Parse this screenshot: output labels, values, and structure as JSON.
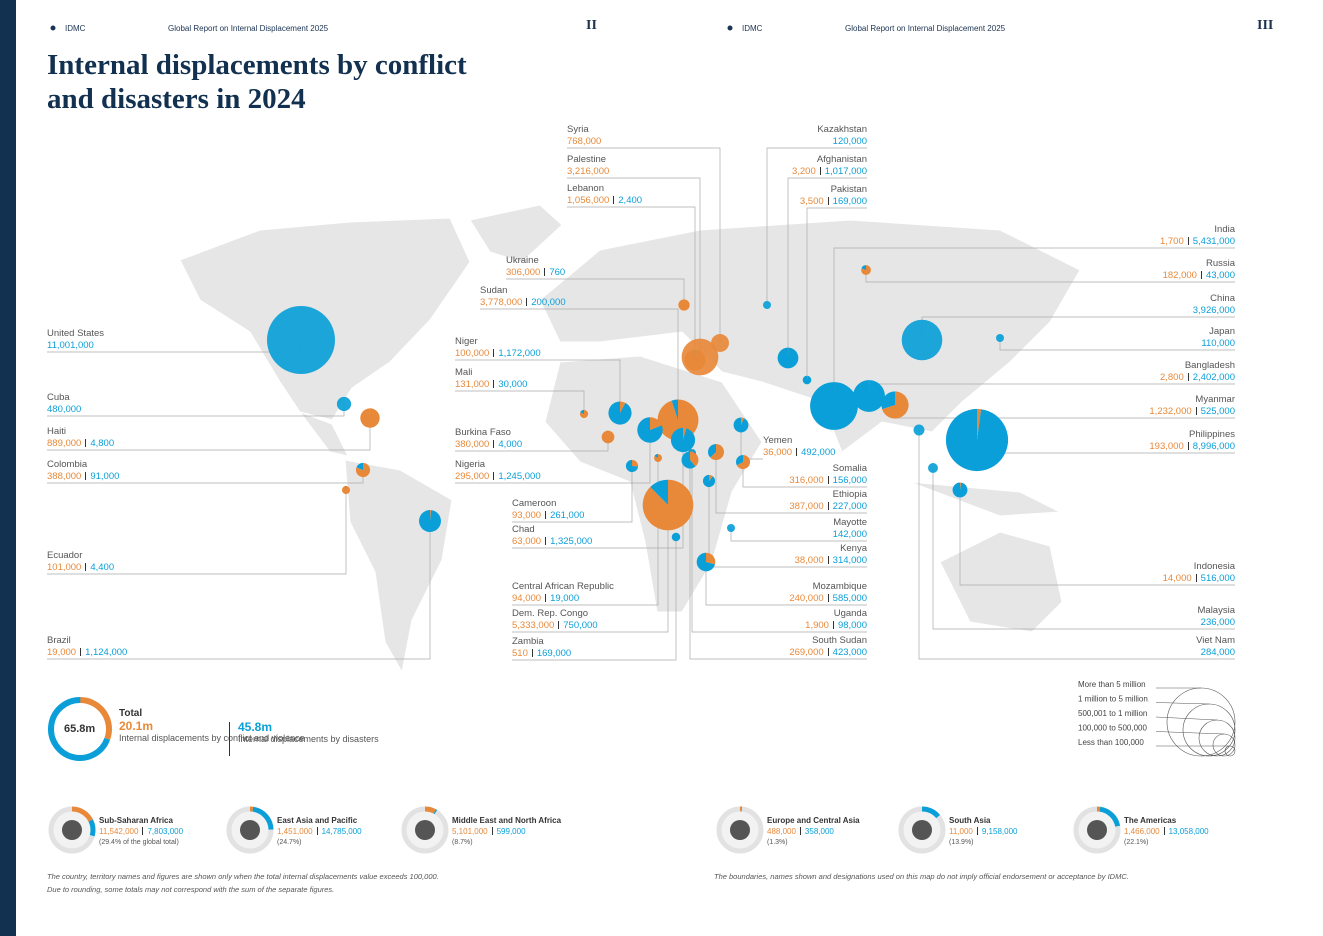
{
  "header": {
    "left": {
      "org": "IDMC",
      "report": "Global Report on Internal Displacement 2025",
      "page": "II"
    },
    "right": {
      "org": "IDMC",
      "report": "Global Report on Internal Displacement 2025",
      "page": "III"
    }
  },
  "title": "Internal displacements by conflict and disasters in 2024",
  "countries": [
    {
      "name": "United States",
      "disasters": {
        "value": 11001000,
        "label": "11,001,000"
      }
    },
    {
      "name": "Cuba",
      "disasters": {
        "value": 480000,
        "label": "480,000"
      }
    },
    {
      "name": "Haiti",
      "conflict": {
        "value": 889000,
        "label": "889,000"
      },
      "disasters": {
        "value": 4800,
        "label": "4,800"
      }
    },
    {
      "name": "Colombia",
      "conflict": {
        "value": 388000,
        "label": "388,000"
      },
      "disasters": {
        "value": 91000,
        "label": "91,000"
      }
    },
    {
      "name": "Ecuador",
      "conflict": {
        "value": 101000,
        "label": "101,000"
      },
      "disasters": {
        "value": 4400,
        "label": "4,400"
      }
    },
    {
      "name": "Brazil",
      "conflict": {
        "value": 19000,
        "label": "19,000"
      },
      "disasters": {
        "value": 1124000,
        "label": "1,124,000"
      }
    },
    {
      "name": "Ukraine",
      "conflict": {
        "value": 306000,
        "label": "306,000"
      },
      "disasters": {
        "value": 760,
        "label": "760"
      }
    },
    {
      "name": "Sudan",
      "conflict": {
        "value": 3778000,
        "label": "3,778,000"
      },
      "disasters": {
        "value": 200000,
        "label": "200,000"
      }
    },
    {
      "name": "Niger",
      "conflict": {
        "value": 100000,
        "label": "100,000"
      },
      "disasters": {
        "value": 1172000,
        "label": "1,172,000"
      }
    },
    {
      "name": "Mali",
      "conflict": {
        "value": 131000,
        "label": "131,000"
      },
      "disasters": {
        "value": 30000,
        "label": "30,000"
      }
    },
    {
      "name": "Burkina Faso",
      "conflict": {
        "value": 380000,
        "label": "380,000"
      },
      "disasters": {
        "value": 4000,
        "label": "4,000"
      }
    },
    {
      "name": "Nigeria",
      "conflict": {
        "value": 295000,
        "label": "295,000"
      },
      "disasters": {
        "value": 1245000,
        "label": "1,245,000"
      }
    },
    {
      "name": "Syria",
      "conflict": {
        "value": 768000,
        "label": "768,000"
      }
    },
    {
      "name": "Palestine",
      "conflict": {
        "value": 3216000,
        "label": "3,216,000"
      }
    },
    {
      "name": "Lebanon",
      "conflict": {
        "value": 1056000,
        "label": "1,056,000"
      },
      "disasters": {
        "value": 2400,
        "label": "2,400"
      }
    },
    {
      "name": "Cameroon",
      "conflict": {
        "value": 93000,
        "label": "93,000"
      },
      "disasters": {
        "value": 261000,
        "label": "261,000"
      }
    },
    {
      "name": "Chad",
      "conflict": {
        "value": 63000,
        "label": "63,000"
      },
      "disasters": {
        "value": 1325000,
        "label": "1,325,000"
      }
    },
    {
      "name": "Central African Republic",
      "conflict": {
        "value": 94000,
        "label": "94,000"
      },
      "disasters": {
        "value": 19000,
        "label": "19,000"
      }
    },
    {
      "name": "Dem. Rep. Congo",
      "conflict": {
        "value": 5333000,
        "label": "5,333,000"
      },
      "disasters": {
        "value": 750000,
        "label": "750,000"
      }
    },
    {
      "name": "Zambia",
      "conflict": {
        "value": 510,
        "label": "510"
      },
      "disasters": {
        "value": 169000,
        "label": "169,000"
      }
    },
    {
      "name": "Kazakhstan",
      "disasters": {
        "value": 120000,
        "label": "120,000"
      }
    },
    {
      "name": "Afghanistan",
      "conflict": {
        "value": 3200,
        "label": "3,200"
      },
      "disasters": {
        "value": 1017000,
        "label": "1,017,000"
      }
    },
    {
      "name": "Pakistan",
      "conflict": {
        "value": 3500,
        "label": "3,500"
      },
      "disasters": {
        "value": 169000,
        "label": "169,000"
      }
    },
    {
      "name": "Yemen",
      "conflict": {
        "value": 36000,
        "label": "36,000"
      },
      "disasters": {
        "value": 492000,
        "label": "492,000"
      }
    },
    {
      "name": "Somalia",
      "conflict": {
        "value": 316000,
        "label": "316,000"
      },
      "disasters": {
        "value": 156000,
        "label": "156,000"
      }
    },
    {
      "name": "Ethiopia",
      "conflict": {
        "value": 387000,
        "label": "387,000"
      },
      "disasters": {
        "value": 227000,
        "label": "227,000"
      }
    },
    {
      "name": "Mayotte",
      "disasters": {
        "value": 142000,
        "label": "142,000"
      }
    },
    {
      "name": "Kenya",
      "conflict": {
        "value": 38000,
        "label": "38,000"
      },
      "disasters": {
        "value": 314000,
        "label": "314,000"
      }
    },
    {
      "name": "Mozambique",
      "conflict": {
        "value": 240000,
        "label": "240,000"
      },
      "disasters": {
        "value": 585000,
        "label": "585,000"
      }
    },
    {
      "name": "Uganda",
      "conflict": {
        "value": 1900,
        "label": "1,900"
      },
      "disasters": {
        "value": 98000,
        "label": "98,000"
      }
    },
    {
      "name": "South Sudan",
      "conflict": {
        "value": 269000,
        "label": "269,000"
      },
      "disasters": {
        "value": 423000,
        "label": "423,000"
      }
    },
    {
      "name": "India",
      "conflict": {
        "value": 1700,
        "label": "1,700"
      },
      "disasters": {
        "value": 5431000,
        "label": "5,431,000"
      }
    },
    {
      "name": "Russia",
      "conflict": {
        "value": 182000,
        "label": "182,000"
      },
      "disasters": {
        "value": 43000,
        "label": "43,000"
      }
    },
    {
      "name": "China",
      "disasters": {
        "value": 3926000,
        "label": "3,926,000"
      }
    },
    {
      "name": "Japan",
      "disasters": {
        "value": 110000,
        "label": "110,000"
      }
    },
    {
      "name": "Bangladesh",
      "conflict": {
        "value": 2800,
        "label": "2,800"
      },
      "disasters": {
        "value": 2402000,
        "label": "2,402,000"
      }
    },
    {
      "name": "Myanmar",
      "conflict": {
        "value": 1232000,
        "label": "1,232,000"
      },
      "disasters": {
        "value": 525000,
        "label": "525,000"
      }
    },
    {
      "name": "Philippines",
      "conflict": {
        "value": 193000,
        "label": "193,000"
      },
      "disasters": {
        "value": 8996000,
        "label": "8,996,000"
      }
    },
    {
      "name": "Indonesia",
      "conflict": {
        "value": 14000,
        "label": "14,000"
      },
      "disasters": {
        "value": 516000,
        "label": "516,000"
      }
    },
    {
      "name": "Malaysia",
      "disasters": {
        "value": 236000,
        "label": "236,000"
      }
    },
    {
      "name": "Viet Nam",
      "disasters": {
        "value": 284000,
        "label": "284,000"
      }
    }
  ],
  "total": {
    "title": "Total",
    "value": 65.8,
    "label": "65.8m",
    "conflict": {
      "value": 20.1,
      "label": "20.1m",
      "caption": "Internal displacements by conflict and violence"
    },
    "disasters": {
      "value": 45.8,
      "label": "45.8m",
      "caption": "Internal displacements by disasters"
    }
  },
  "regions": [
    {
      "name": "Sub-Saharan Africa",
      "conflict": {
        "value": 11542000,
        "label": "11,542,000"
      },
      "disasters": {
        "value": 7803000,
        "label": "7,803,000"
      },
      "share": "(29.4% of the global total)"
    },
    {
      "name": "East Asia and Pacific",
      "conflict": {
        "value": 1451000,
        "label": "1,451,000"
      },
      "disasters": {
        "value": 14785000,
        "label": "14,785,000"
      },
      "share": "(24.7%)"
    },
    {
      "name": "Middle East and North Africa",
      "conflict": {
        "value": 5101000,
        "label": "5,101,000"
      },
      "disasters": {
        "value": 599000,
        "label": "599,000"
      },
      "share": "(8.7%)"
    },
    {
      "name": "Europe and Central Asia",
      "conflict": {
        "value": 488000,
        "label": "488,000"
      },
      "disasters": {
        "value": 358000,
        "label": "358,000"
      },
      "share": "(1.3%)"
    },
    {
      "name": "South Asia",
      "conflict": {
        "value": 11000,
        "label": "11,000"
      },
      "disasters": {
        "value": 9158000,
        "label": "9,158,000"
      },
      "share": "(13.9%)"
    },
    {
      "name": "The Americas",
      "conflict": {
        "value": 1466000,
        "label": "1,466,000"
      },
      "disasters": {
        "value": 13058000,
        "label": "13,058,000"
      },
      "share": "(22.1%)"
    }
  ],
  "legend": [
    "More than 5 million",
    "1 million to 5 million",
    "500,001 to 1 million",
    "100,000 to 500,000",
    "Less than 100,000"
  ],
  "notes": {
    "left": [
      "The country, territory names and figures are shown only when the total internal displacements value exceeds 100,000.",
      "Due to rounding, some totals may not correspond with the sum of the separate figures."
    ],
    "right": "The boundaries, names shown and designations used on this map do not imply official endorsement or acceptance by IDMC."
  }
}
